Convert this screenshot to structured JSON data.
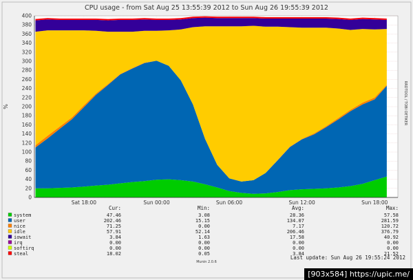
{
  "chart_data": {
    "type": "area",
    "title": "CPU usage - from Sat Aug 25 13:55:39 2012 to Sun Aug 26 19:55:39 2012",
    "ylabel": "%",
    "side_label": "RRDTOOL / TOBI OETIKER",
    "ylim": [
      0,
      400
    ],
    "yticks": [
      0,
      20,
      40,
      60,
      80,
      100,
      120,
      140,
      160,
      180,
      200,
      220,
      240,
      260,
      280,
      300,
      320,
      340,
      360,
      380,
      400
    ],
    "xlim": [
      "2012-08-25 13:55",
      "2012-08-26 19:55"
    ],
    "xticks": [
      {
        "label": "Sat 18:00",
        "time": "2012-08-25 18:00"
      },
      {
        "label": "Sun 00:00",
        "time": "2012-08-26 00:00"
      },
      {
        "label": "Sun 06:00",
        "time": "2012-08-26 06:00"
      },
      {
        "label": "Sun 12:00",
        "time": "2012-08-26 12:00"
      },
      {
        "label": "Sun 18:00",
        "time": "2012-08-26 18:00"
      }
    ],
    "grid": true,
    "stacked": true,
    "x": [
      "2012-08-25 14:00",
      "2012-08-25 15:00",
      "2012-08-25 16:00",
      "2012-08-25 17:00",
      "2012-08-25 18:00",
      "2012-08-25 19:00",
      "2012-08-25 20:00",
      "2012-08-25 21:00",
      "2012-08-25 22:00",
      "2012-08-25 23:00",
      "2012-08-26 00:00",
      "2012-08-26 01:00",
      "2012-08-26 02:00",
      "2012-08-26 03:00",
      "2012-08-26 04:00",
      "2012-08-26 05:00",
      "2012-08-26 06:00",
      "2012-08-26 07:00",
      "2012-08-26 08:00",
      "2012-08-26 09:00",
      "2012-08-26 10:00",
      "2012-08-26 11:00",
      "2012-08-26 12:00",
      "2012-08-26 13:00",
      "2012-08-26 14:00",
      "2012-08-26 15:00",
      "2012-08-26 16:00",
      "2012-08-26 17:00",
      "2012-08-26 18:00",
      "2012-08-26 19:00"
    ],
    "series": [
      {
        "name": "system",
        "color": "#00cc00",
        "values": [
          20,
          20,
          21,
          22,
          24,
          26,
          28,
          31,
          34,
          36,
          39,
          40,
          38,
          35,
          29,
          22,
          14,
          10,
          8,
          9,
          12,
          16,
          18,
          19,
          20,
          22,
          25,
          30,
          38,
          46
        ]
      },
      {
        "name": "user",
        "color": "#0066b3",
        "values": [
          90,
          110,
          130,
          150,
          175,
          200,
          220,
          240,
          250,
          260,
          262,
          250,
          220,
          170,
          100,
          50,
          28,
          25,
          30,
          45,
          70,
          95,
          110,
          120,
          135,
          150,
          165,
          175,
          178,
          200
        ]
      },
      {
        "name": "nice",
        "color": "#ff8000",
        "values": [
          5,
          6,
          5,
          4,
          4,
          3,
          2,
          1,
          1,
          1,
          0,
          0,
          0,
          0,
          0,
          0,
          0,
          0,
          0,
          0,
          1,
          1,
          1,
          2,
          2,
          3,
          3,
          4,
          4,
          2
        ]
      },
      {
        "name": "idle",
        "color": "#ffcc00",
        "values": [
          250,
          232,
          212,
          192,
          165,
          138,
          115,
          93,
          80,
          70,
          66,
          78,
          112,
          170,
          248,
          305,
          335,
          342,
          340,
          322,
          293,
          263,
          245,
          233,
          217,
          197,
          176,
          162,
          150,
          123
        ]
      },
      {
        "name": "iowait",
        "color": "#330099",
        "values": [
          25,
          24,
          23,
          23,
          23,
          24,
          25,
          26,
          26,
          25,
          24,
          23,
          22,
          20,
          19,
          18,
          18,
          18,
          17,
          18,
          18,
          19,
          20,
          20,
          20,
          21,
          22,
          22,
          22,
          20
        ]
      },
      {
        "name": "irq",
        "color": "#990099",
        "values": [
          0,
          0,
          0,
          0,
          0,
          0,
          0,
          0,
          0,
          0,
          0,
          0,
          0,
          0,
          0,
          0,
          0,
          0,
          0,
          0,
          0,
          0,
          0,
          0,
          0,
          0,
          0,
          0,
          0,
          0
        ]
      },
      {
        "name": "softirq",
        "color": "#ccff00",
        "values": [
          0,
          0,
          0,
          0,
          0,
          0,
          0,
          0,
          0,
          0,
          0,
          0,
          0,
          0,
          0,
          0,
          0,
          0,
          0,
          0,
          0,
          0,
          0,
          0,
          0,
          0,
          0,
          0,
          0,
          0
        ]
      },
      {
        "name": "steal",
        "color": "#ff0000",
        "values": [
          3,
          3,
          3,
          3,
          3,
          3,
          3,
          3,
          3,
          3,
          3,
          3,
          3,
          3,
          3,
          3,
          3,
          3,
          3,
          3,
          3,
          3,
          3,
          3,
          3,
          3,
          3,
          3,
          3,
          3
        ]
      }
    ]
  },
  "legend": {
    "headers": {
      "cur": "Cur:",
      "min": "Min:",
      "avg": "Avg:",
      "max": "Max:"
    },
    "rows": [
      {
        "name": "system",
        "color": "#00cc00",
        "cur": "47.46",
        "min": "3.08",
        "avg": "28.36",
        "max": "57.58"
      },
      {
        "name": "user",
        "color": "#0066b3",
        "cur": "202.46",
        "min": "15.15",
        "avg": "134.07",
        "max": "281.59"
      },
      {
        "name": "nice",
        "color": "#ff8000",
        "cur": "71.25",
        "min": "0.00",
        "avg": "7.17",
        "max": "120.72"
      },
      {
        "name": "idle",
        "color": "#ffcc00",
        "cur": "57.91",
        "min": "52.14",
        "avg": "206.46",
        "max": "376.79"
      },
      {
        "name": "iowait",
        "color": "#330099",
        "cur": "3.84",
        "min": "1.63",
        "avg": "17.58",
        "max": "40.92"
      },
      {
        "name": "irq",
        "color": "#990099",
        "cur": "0.00",
        "min": "0.00",
        "avg": "0.00",
        "max": "0.00"
      },
      {
        "name": "softirq",
        "color": "#ccff00",
        "cur": "0.00",
        "min": "0.00",
        "avg": "0.00",
        "max": "0.00"
      },
      {
        "name": "steal",
        "color": "#ff0000",
        "cur": "18.02",
        "min": "0.05",
        "avg": "3.84",
        "max": "21.52"
      }
    ]
  },
  "footer": {
    "last_update": "Last update: Sun Aug 26 19:55:24 2012",
    "brand": "Munin 2.0.6"
  },
  "watermark": "[903x584] https://upic.me/"
}
